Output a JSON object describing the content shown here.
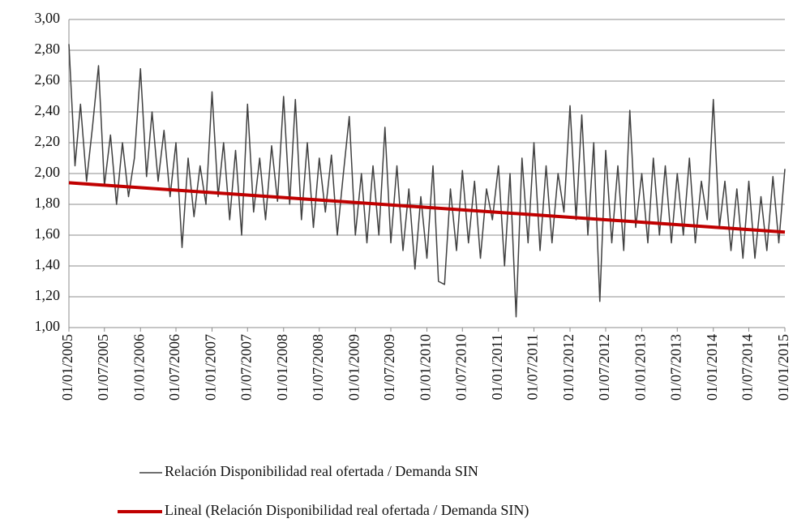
{
  "chart_data": {
    "type": "line",
    "x": [
      "01/01/2005",
      "01/02/2005",
      "01/03/2005",
      "01/04/2005",
      "01/05/2005",
      "01/06/2005",
      "01/07/2005",
      "01/08/2005",
      "01/09/2005",
      "01/10/2005",
      "01/11/2005",
      "01/12/2005",
      "01/01/2006",
      "01/02/2006",
      "01/03/2006",
      "01/04/2006",
      "01/05/2006",
      "01/06/2006",
      "01/07/2006",
      "01/08/2006",
      "01/09/2006",
      "01/10/2006",
      "01/11/2006",
      "01/12/2006",
      "01/01/2007",
      "01/02/2007",
      "01/03/2007",
      "01/04/2007",
      "01/05/2007",
      "01/06/2007",
      "01/07/2007",
      "01/08/2007",
      "01/09/2007",
      "01/10/2007",
      "01/11/2007",
      "01/12/2007",
      "01/01/2008",
      "01/02/2008",
      "01/03/2008",
      "01/04/2008",
      "01/05/2008",
      "01/06/2008",
      "01/07/2008",
      "01/08/2008",
      "01/09/2008",
      "01/10/2008",
      "01/11/2008",
      "01/12/2008",
      "01/01/2009",
      "01/02/2009",
      "01/03/2009",
      "01/04/2009",
      "01/05/2009",
      "01/06/2009",
      "01/07/2009",
      "01/08/2009",
      "01/09/2009",
      "01/10/2009",
      "01/11/2009",
      "01/12/2009",
      "01/01/2010",
      "01/02/2010",
      "01/03/2010",
      "01/04/2010",
      "01/05/2010",
      "01/06/2010",
      "01/07/2010",
      "01/08/2010",
      "01/09/2010",
      "01/10/2010",
      "01/11/2010",
      "01/12/2010",
      "01/01/2011",
      "01/02/2011",
      "01/03/2011",
      "01/04/2011",
      "01/05/2011",
      "01/06/2011",
      "01/07/2011",
      "01/08/2011",
      "01/09/2011",
      "01/10/2011",
      "01/11/2011",
      "01/12/2011",
      "01/01/2012",
      "01/02/2012",
      "01/03/2012",
      "01/04/2012",
      "01/05/2012",
      "01/06/2012",
      "01/07/2012",
      "01/08/2012",
      "01/09/2012",
      "01/10/2012",
      "01/11/2012",
      "01/12/2012",
      "01/01/2013",
      "01/02/2013",
      "01/03/2013",
      "01/04/2013",
      "01/05/2013",
      "01/06/2013",
      "01/07/2013",
      "01/08/2013",
      "01/09/2013",
      "01/10/2013",
      "01/11/2013",
      "01/12/2013",
      "01/01/2014",
      "01/02/2014",
      "01/03/2014",
      "01/04/2014",
      "01/05/2014",
      "01/06/2014",
      "01/07/2014",
      "01/08/2014",
      "01/09/2014",
      "01/10/2014",
      "01/11/2014",
      "01/12/2014",
      "01/01/2015"
    ],
    "series": [
      {
        "name": "Relación Disponibilidad real ofertada / Demanda SIN",
        "color": "#404040",
        "width": 1.5,
        "values": [
          2.84,
          2.05,
          2.45,
          1.95,
          2.3,
          2.7,
          1.92,
          2.25,
          1.8,
          2.2,
          1.85,
          2.1,
          2.68,
          1.98,
          2.4,
          1.95,
          2.28,
          1.85,
          2.2,
          1.52,
          2.1,
          1.72,
          2.05,
          1.8,
          2.53,
          1.85,
          2.2,
          1.7,
          2.15,
          1.6,
          2.45,
          1.75,
          2.1,
          1.7,
          2.18,
          1.82,
          2.5,
          1.8,
          2.48,
          1.7,
          2.2,
          1.65,
          2.1,
          1.75,
          2.12,
          1.6,
          2.0,
          2.37,
          1.6,
          2.0,
          1.55,
          2.05,
          1.6,
          2.3,
          1.55,
          2.05,
          1.5,
          1.9,
          1.38,
          1.85,
          1.45,
          2.05,
          1.3,
          1.28,
          1.9,
          1.5,
          2.02,
          1.55,
          1.95,
          1.45,
          1.9,
          1.7,
          2.05,
          1.4,
          2.0,
          1.07,
          2.1,
          1.55,
          2.2,
          1.5,
          2.05,
          1.55,
          2.0,
          1.75,
          2.44,
          1.7,
          2.38,
          1.6,
          2.2,
          1.17,
          2.15,
          1.55,
          2.05,
          1.5,
          2.41,
          1.65,
          2.0,
          1.55,
          2.1,
          1.6,
          2.05,
          1.55,
          2.0,
          1.6,
          2.1,
          1.55,
          1.95,
          1.7,
          2.48,
          1.65,
          1.95,
          1.5,
          1.9,
          1.45,
          1.95,
          1.45,
          1.85,
          1.5,
          1.98,
          1.55,
          2.03
        ]
      },
      {
        "name": "Lineal (Relación Disponibilidad real ofertada / Demanda SIN)",
        "color": "#c00000",
        "width": 4,
        "x": [
          "01/01/2005",
          "01/01/2015"
        ],
        "values": [
          1.94,
          1.62
        ]
      }
    ],
    "xlim": [
      "01/01/2005",
      "01/01/2015"
    ],
    "xticks": [
      "01/01/2005",
      "01/07/2005",
      "01/01/2006",
      "01/07/2006",
      "01/01/2007",
      "01/07/2007",
      "01/01/2008",
      "01/07/2008",
      "01/01/2009",
      "01/07/2009",
      "01/01/2010",
      "01/07/2010",
      "01/01/2011",
      "01/07/2011",
      "01/01/2012",
      "01/07/2012",
      "01/01/2013",
      "01/07/2013",
      "01/01/2014",
      "01/07/2014",
      "01/01/2015"
    ],
    "ylim": [
      1,
      3
    ],
    "yticks": [
      {
        "value": 1,
        "label": "1,00"
      },
      {
        "value": 1.2,
        "label": "1,20"
      },
      {
        "value": 1.4,
        "label": "1,40"
      },
      {
        "value": 1.6,
        "label": "1,60"
      },
      {
        "value": 1.8,
        "label": "1,80"
      },
      {
        "value": 2,
        "label": "2,00"
      },
      {
        "value": 2.2,
        "label": "2,20"
      },
      {
        "value": 2.4,
        "label": "2,40"
      },
      {
        "value": 2.6,
        "label": "2,60"
      },
      {
        "value": 2.8,
        "label": "2,80"
      },
      {
        "value": 3,
        "label": "3,00"
      }
    ],
    "grid": true,
    "legend": "bottom"
  }
}
